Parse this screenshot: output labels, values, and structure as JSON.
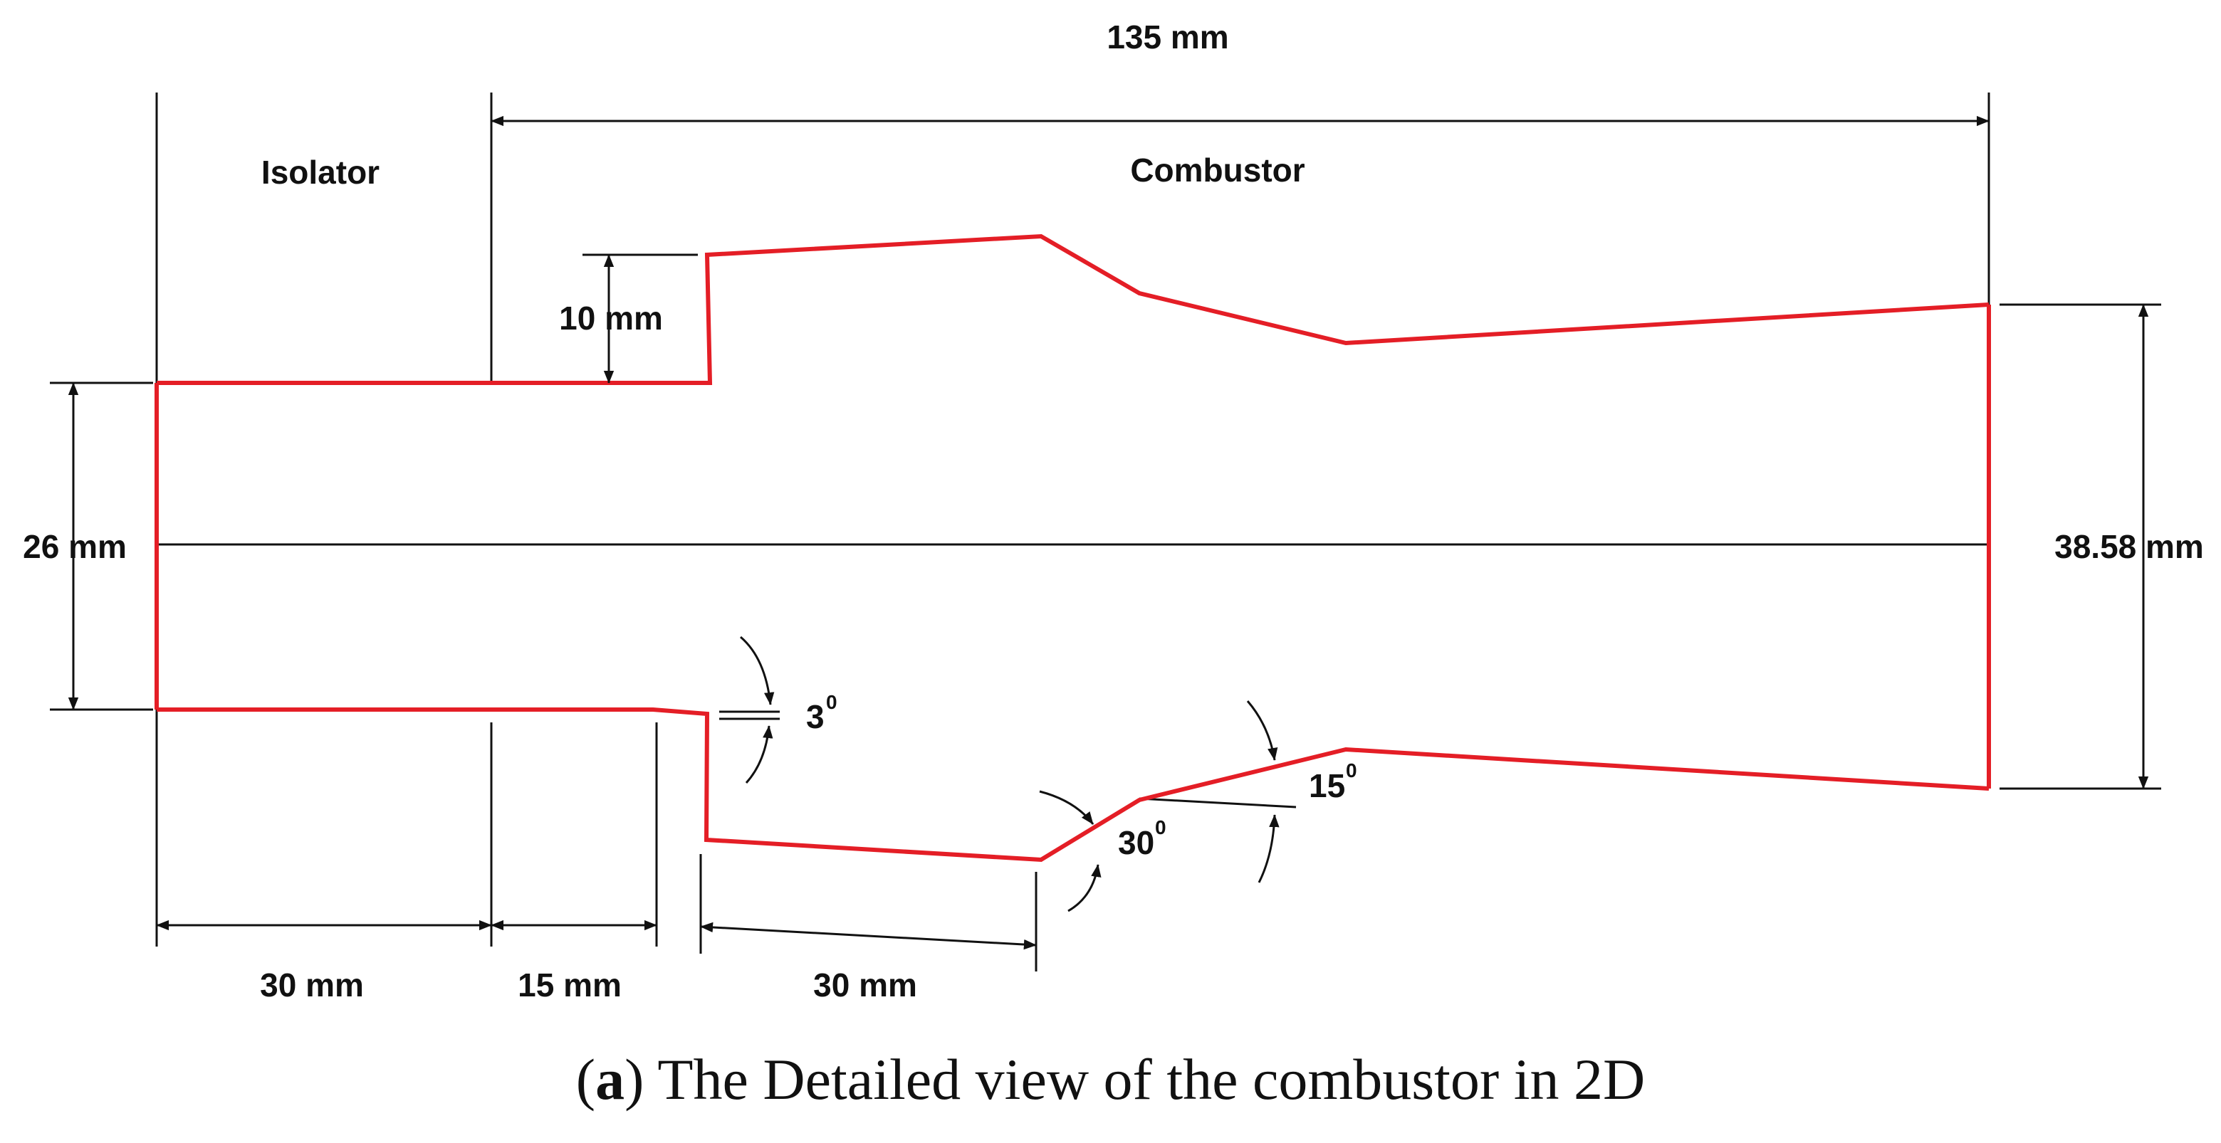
{
  "colors": {
    "wall": "#e41e26",
    "ink": "#111111"
  },
  "labels": {
    "total_length": "135 mm",
    "isolator": "Isolator",
    "combustor": "Combustor",
    "step_height": "10 mm",
    "inlet_height": "26 mm",
    "outlet_height": "38.58 mm",
    "angle_3": "3",
    "angle_30": "30",
    "angle_15": "15",
    "degree_mark": "0",
    "len_isolator": "30 mm",
    "len_mid": "15 mm",
    "len_cavity": "30 mm"
  },
  "caption": {
    "panel": "a",
    "open": "(",
    "close": ")",
    "text": " The Detailed view of the combustor in 2D"
  }
}
